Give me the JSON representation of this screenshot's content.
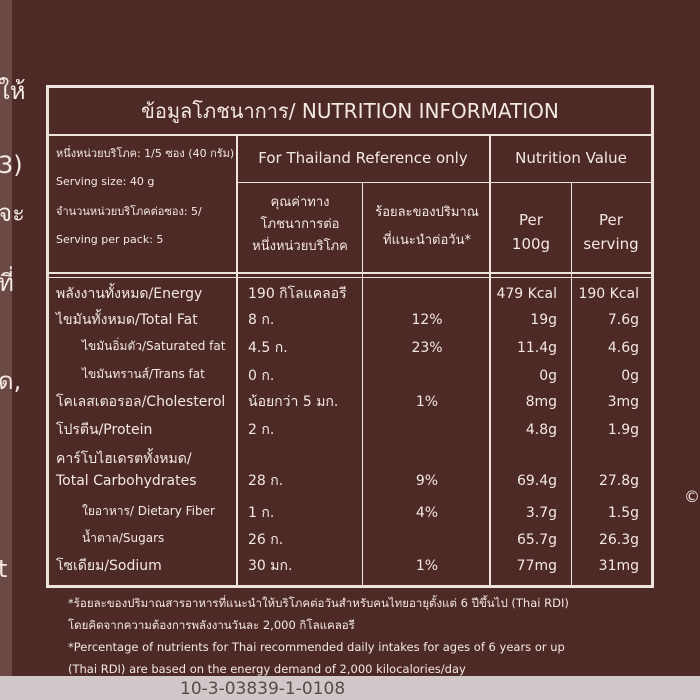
{
  "edge_text": {
    "left": [
      "ให้",
      "3)",
      "จะ",
      "ที่",
      "ด,",
      "t"
    ],
    "right": "©",
    "bottom": "10-3-03839-1-0108"
  },
  "title": "ข้อมูลโภชนาการ/ NUTRITION INFORMATION",
  "serving": [
    "หนึ่งหน่วยบริโภค: 1/5 ซอง (40 กรัม)",
    "Serving size: 40 g",
    "จำนวนหน่วยบริโภคต่อซอง: 5/",
    "Serving per pack: 5"
  ],
  "header": {
    "reference": "For Thailand Reference only",
    "nutrition_value": "Nutrition Value",
    "per_serving_thai": [
      "คุณค่าทาง",
      "โภชนาการต่อ",
      "หนึ่งหน่วยบริโภค"
    ],
    "rdi_thai": [
      "ร้อยละของปริมาณ",
      "ที่แนะนำต่อวัน*"
    ],
    "per_100g": [
      "Per",
      "100g"
    ],
    "per_serving": [
      "Per",
      "serving"
    ]
  },
  "rows": [
    {
      "label": [
        "พลังงานทั้งหมด/Energy"
      ],
      "amount": "190 กิโลแคลอรี",
      "per_100g": "479 Kcal",
      "per_serving": "190 Kcal"
    },
    {
      "label": [
        "ไขมันทั้งหมด/Total Fat"
      ],
      "amount": "8 ก.",
      "rdi": "12%",
      "per_100g": "19g",
      "per_serving": "7.6g"
    },
    {
      "label": [
        "ไขมันอิ่มตัว/Saturated fat"
      ],
      "amount": "4.5 ก.",
      "rdi": "23%",
      "per_100g": "11.4g",
      "per_serving": "4.6g"
    },
    {
      "label": [
        "ไขมันทรานส์/Trans fat"
      ],
      "amount": "0 ก.",
      "per_100g": "0g",
      "per_serving": "0g"
    },
    {
      "label": [
        "โคเลสเตอรอล/Cholesterol"
      ],
      "amount": "น้อยกว่า 5 มก.",
      "rdi": "1%",
      "per_100g": "8mg",
      "per_serving": "3mg"
    },
    {
      "label": [
        "โปรตีน/Protein"
      ],
      "amount": "2 ก.",
      "per_100g": "4.8g",
      "per_serving": "1.9g"
    },
    {
      "label": [
        "คาร์โบไฮเดรตทั้งหมด/",
        "Total Carbohydrates"
      ],
      "amount": "28 ก.",
      "rdi": "9%",
      "per_100g": "69.4g",
      "per_serving": "27.8g"
    },
    {
      "label": [
        "ใยอาหาร/ Dietary Fiber"
      ],
      "amount": "1 ก.",
      "rdi": "4%",
      "per_100g": "3.7g",
      "per_serving": "1.5g"
    },
    {
      "label": [
        "น้ำตาล/Sugars"
      ],
      "amount": "26 ก.",
      "per_100g": "65.7g",
      "per_serving": "26.3g"
    },
    {
      "label": [
        "โซเดียม/Sodium"
      ],
      "amount": "30 มก.",
      "rdi": "1%",
      "per_100g": "77mg",
      "per_serving": "31mg"
    }
  ],
  "footnotes": [
    "*ร้อยละของปริมาณสารอาหารที่แนะนำให้บริโภคต่อวันสำหรับคนไทยอายุตั้งแต่ 6 ปีขึ้นไป (Thai RDI)",
    "โดยคิดจากความต้องการพลังงานวันละ 2,000 กิโลแคลอรี",
    "*Percentage of nutrients for Thai recommended daily intakes for ages of 6 years or up",
    "(Thai RDI) are based on the energy demand of 2,000 kilocalories/day"
  ]
}
